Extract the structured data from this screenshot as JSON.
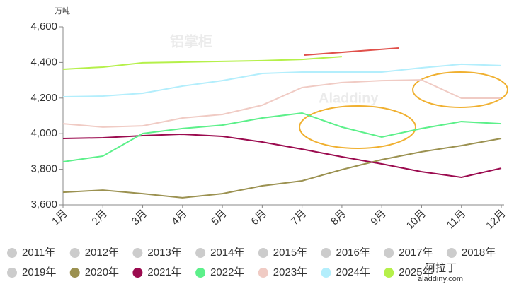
{
  "chart_data": {
    "type": "line",
    "y_label": "万吨",
    "categories": [
      "1月",
      "2月",
      "3月",
      "4月",
      "5月",
      "6月",
      "7月",
      "8月",
      "9月",
      "10月",
      "11月",
      "12月"
    ],
    "ylim": [
      3600,
      4600
    ],
    "yticks": [
      {
        "value": 3600,
        "label": "3,600"
      },
      {
        "value": 3800,
        "label": "3,800"
      },
      {
        "value": 4000,
        "label": "4,000"
      },
      {
        "value": 4200,
        "label": "4,200"
      },
      {
        "value": 4400,
        "label": "4,400"
      },
      {
        "value": 4600,
        "label": "4,600"
      }
    ],
    "inactive_series": [
      {
        "name": "2011年",
        "color": "#cccccc"
      },
      {
        "name": "2012年",
        "color": "#cccccc"
      },
      {
        "name": "2013年",
        "color": "#cccccc"
      },
      {
        "name": "2014年",
        "color": "#cccccc"
      },
      {
        "name": "2015年",
        "color": "#cccccc"
      },
      {
        "name": "2016年",
        "color": "#cccccc"
      },
      {
        "name": "2017年",
        "color": "#cccccc"
      },
      {
        "name": "2018年",
        "color": "#cccccc"
      },
      {
        "name": "2019年",
        "color": "#cccccc"
      }
    ],
    "series": [
      {
        "name": "2020年",
        "color": "#9b9150",
        "values": [
          3671,
          3683,
          3663,
          3640,
          3663,
          3707,
          3735,
          3798,
          3854,
          3898,
          3933,
          3973
        ]
      },
      {
        "name": "2021年",
        "color": "#9b0b4f",
        "values": [
          3973,
          3977,
          3989,
          3997,
          3985,
          3953,
          3913,
          3870,
          3830,
          3786,
          3755,
          3806
        ]
      },
      {
        "name": "2022年",
        "color": "#5cf08a",
        "values": [
          3842,
          3874,
          4001,
          4029,
          4048,
          4088,
          4116,
          4037,
          3981,
          4029,
          4068,
          4056
        ]
      },
      {
        "name": "2023年",
        "color": "#f0cbc4",
        "values": [
          4056,
          4037,
          4044,
          4088,
          4108,
          4160,
          4259,
          4287,
          4298,
          4302,
          4199,
          4199
        ]
      },
      {
        "name": "2024年",
        "color": "#b3eefc",
        "values": [
          4207,
          4211,
          4227,
          4267,
          4298,
          4338,
          4346,
          4346,
          4346,
          4370,
          4390,
          4382
        ]
      },
      {
        "name": "2025年",
        "color": "#b5f04a",
        "values": [
          4362,
          4374,
          4398,
          4402,
          4406,
          4410,
          4417,
          4433,
          null,
          null,
          null,
          null
        ]
      }
    ],
    "watermark": "铝掌柜",
    "watermark_en": "Aladdiny",
    "logo": "阿拉丁",
    "logo_url": "aladdiny.com"
  }
}
